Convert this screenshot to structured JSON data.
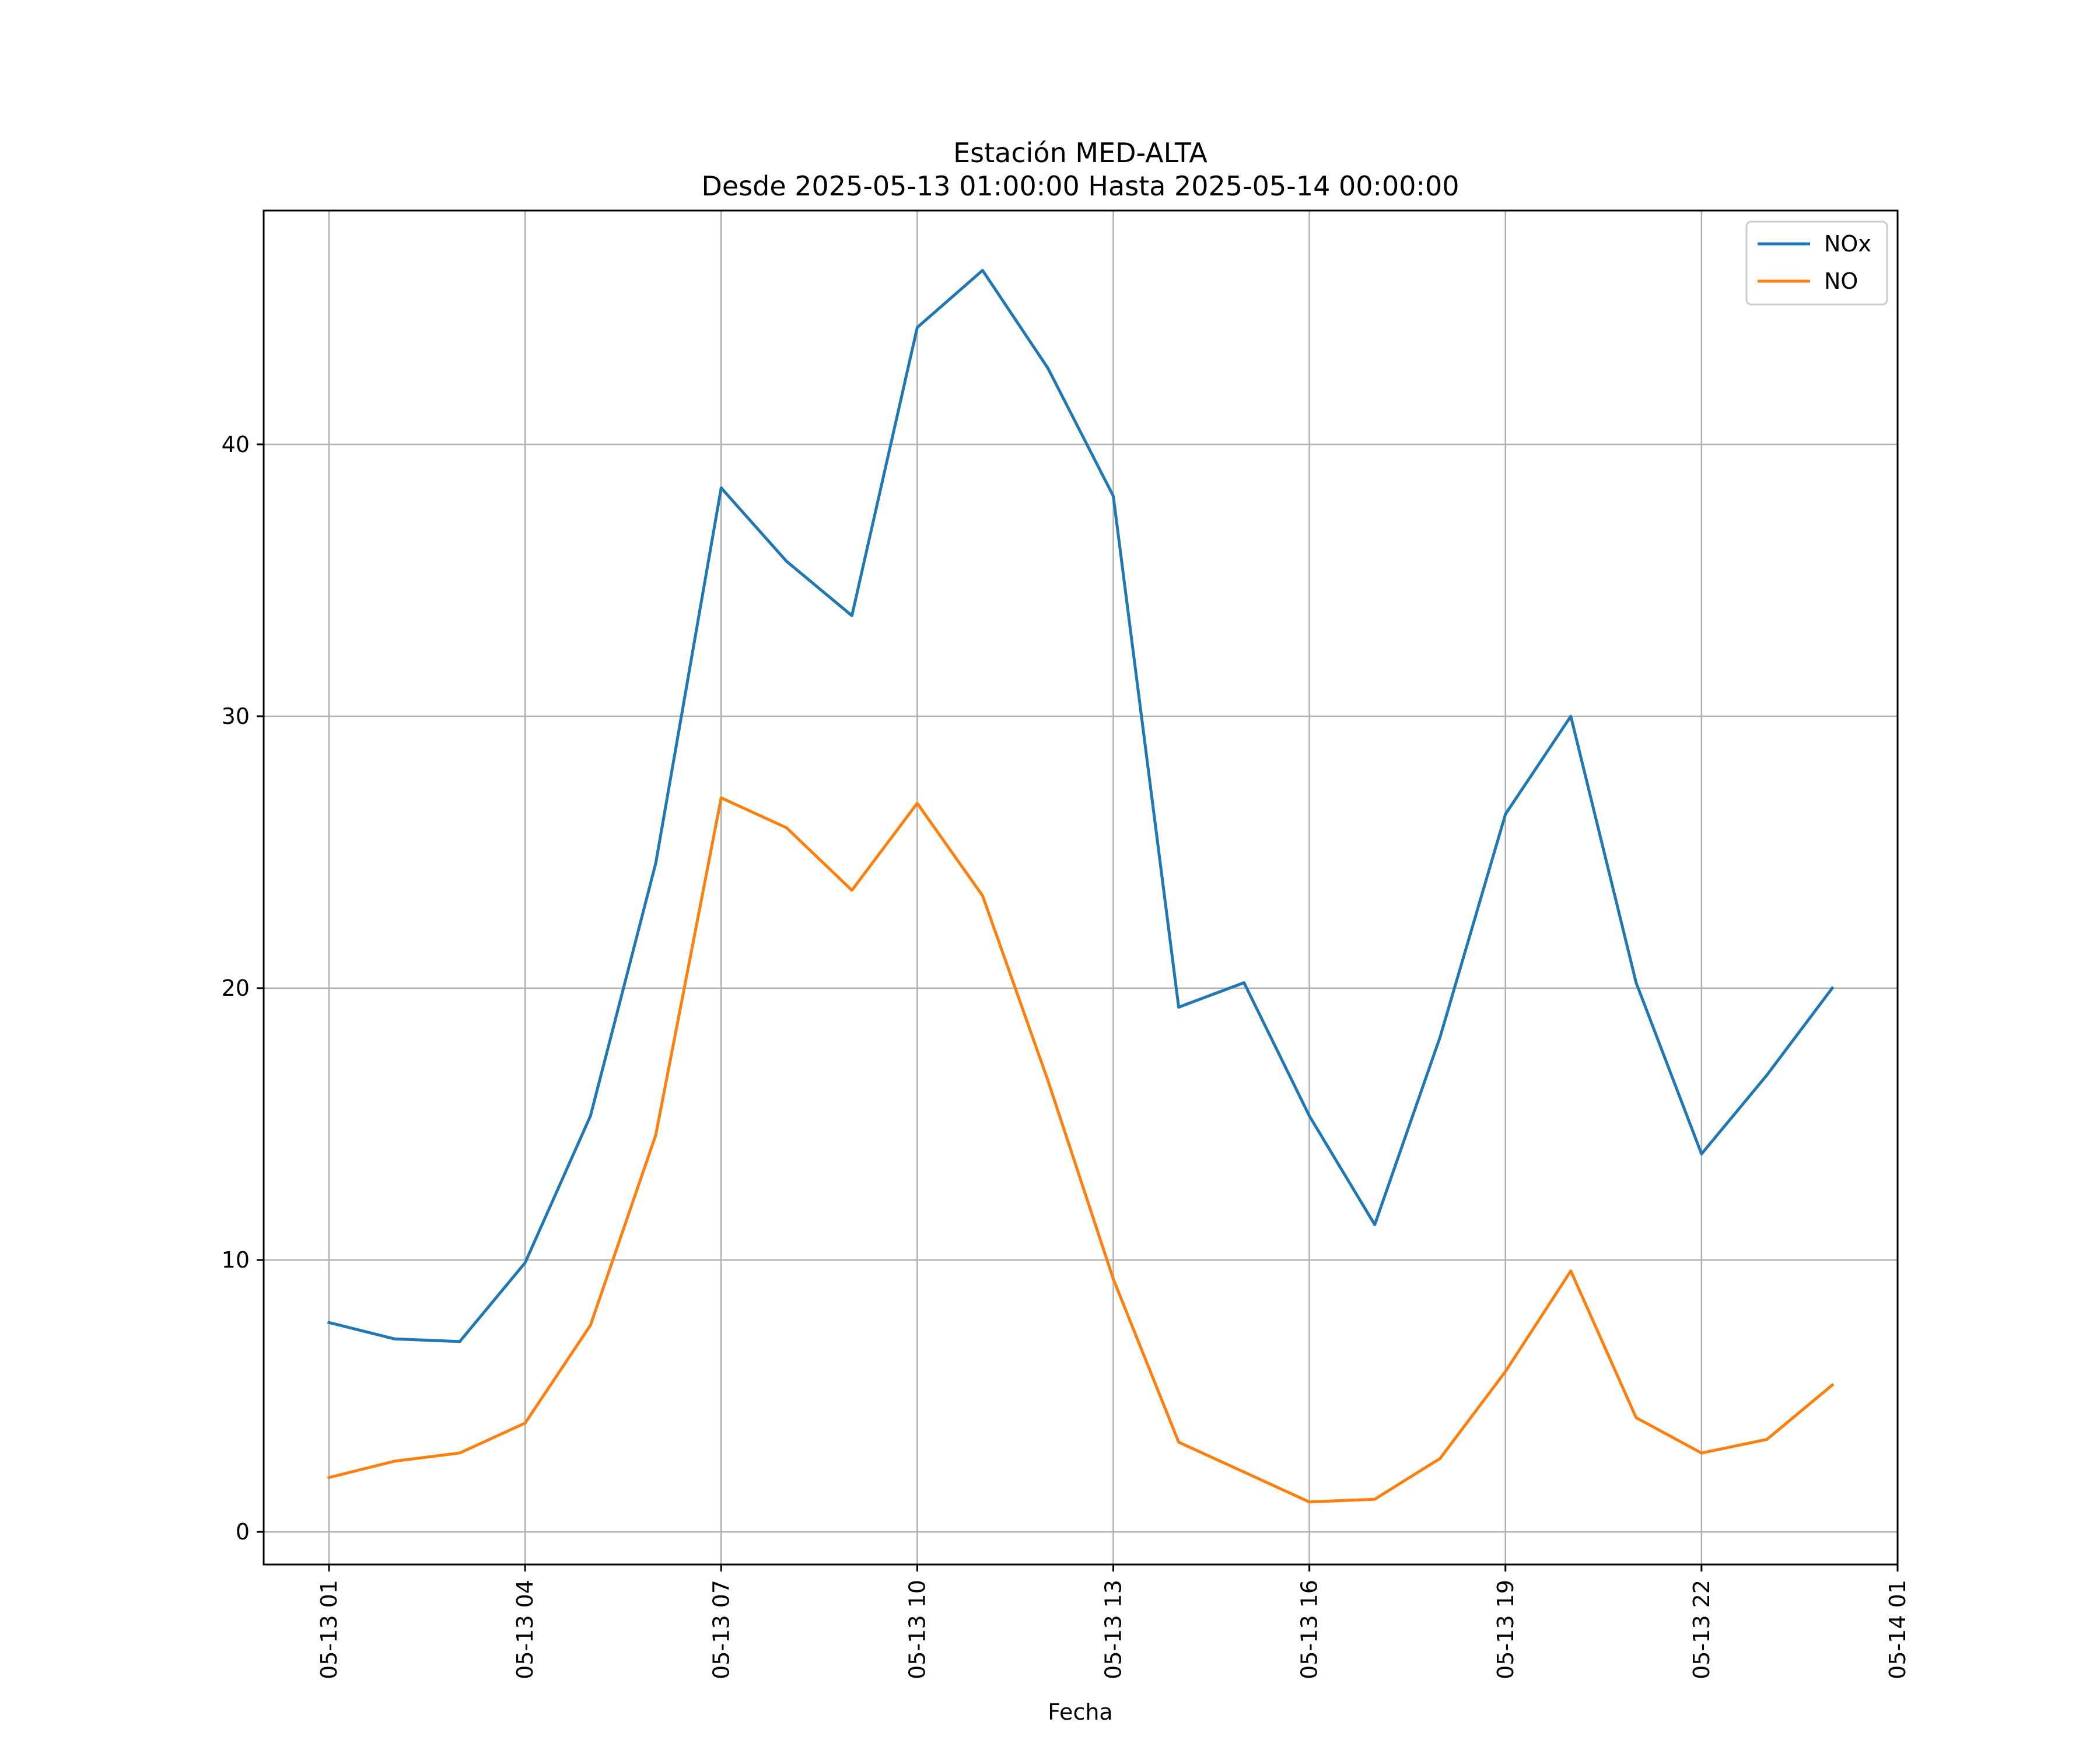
{
  "chart_data": {
    "type": "line",
    "title": "Estación MED-ALTA",
    "subtitle": "Desde 2025-05-13 01:00:00 Hasta 2025-05-14 00:00:00",
    "xlabel": "Fecha",
    "ylabel": "",
    "x": [
      "2025-05-13 01:00",
      "2025-05-13 02:00",
      "2025-05-13 03:00",
      "2025-05-13 04:00",
      "2025-05-13 05:00",
      "2025-05-13 06:00",
      "2025-05-13 07:00",
      "2025-05-13 08:00",
      "2025-05-13 09:00",
      "2025-05-13 10:00",
      "2025-05-13 11:00",
      "2025-05-13 12:00",
      "2025-05-13 13:00",
      "2025-05-13 14:00",
      "2025-05-13 15:00",
      "2025-05-13 16:00",
      "2025-05-13 17:00",
      "2025-05-13 18:00",
      "2025-05-13 19:00",
      "2025-05-13 20:00",
      "2025-05-13 21:00",
      "2025-05-13 22:00",
      "2025-05-13 23:00",
      "2025-05-14 00:00"
    ],
    "series": [
      {
        "name": "NOx",
        "color": "#1f77b4",
        "values": [
          7.7,
          7.1,
          7.0,
          9.9,
          15.3,
          24.6,
          38.4,
          35.7,
          33.7,
          44.3,
          46.4,
          42.8,
          38.1,
          19.3,
          20.2,
          15.3,
          11.3,
          18.2,
          26.4,
          30.0,
          20.2,
          13.9,
          16.8,
          20.0
        ]
      },
      {
        "name": "NO",
        "color": "#ff7f0e",
        "values": [
          2.0,
          2.6,
          2.9,
          4.0,
          7.6,
          14.6,
          27.0,
          25.9,
          23.6,
          26.8,
          23.4,
          16.6,
          9.3,
          3.3,
          2.2,
          1.1,
          1.2,
          2.7,
          5.9,
          9.6,
          4.2,
          2.9,
          3.4,
          5.4
        ]
      }
    ],
    "xlim": [
      "2025-05-13 00:00",
      "2025-05-14 01:00"
    ],
    "ylim": [
      -1.2,
      48.6
    ],
    "yticks": [
      0,
      10,
      20,
      30,
      40
    ],
    "xticks": [
      "2025-05-13 01:00",
      "2025-05-13 04:00",
      "2025-05-13 07:00",
      "2025-05-13 10:00",
      "2025-05-13 13:00",
      "2025-05-13 16:00",
      "2025-05-13 19:00",
      "2025-05-13 22:00",
      "2025-05-14 01:00"
    ],
    "xtick_labels": [
      "05-13 01",
      "05-13 04",
      "05-13 07",
      "05-13 10",
      "05-13 13",
      "05-13 16",
      "05-13 19",
      "05-13 22",
      "05-14 01"
    ],
    "grid": true,
    "legend": "upper right"
  }
}
